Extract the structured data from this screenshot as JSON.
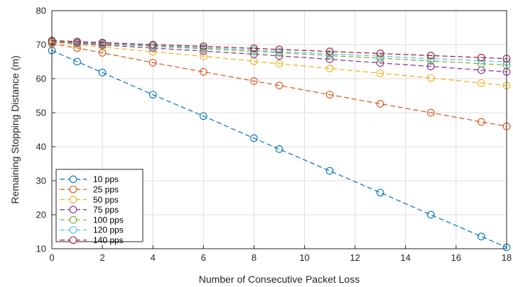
{
  "chart_data": {
    "type": "line",
    "title": "",
    "xlabel": "Number of Consecutive Packet Loss",
    "ylabel": "Remaining Stopping Distance (m)",
    "xlim": [
      0,
      18
    ],
    "ylim": [
      10,
      80
    ],
    "xticks": [
      0,
      2,
      4,
      6,
      8,
      10,
      12,
      14,
      16,
      18
    ],
    "yticks": [
      10,
      20,
      30,
      40,
      50,
      60,
      70,
      80
    ],
    "grid": true,
    "line_style": "dashed",
    "marker": "circle",
    "legend_position": "bottom-left",
    "x": [
      0,
      1,
      2,
      4,
      6,
      8,
      9,
      11,
      13,
      15,
      17,
      18
    ],
    "series": [
      {
        "name": "10 pps",
        "color": "#0072BD",
        "values": [
          68.3,
          65.0,
          61.8,
          55.3,
          49.0,
          42.5,
          39.3,
          32.9,
          26.5,
          20.0,
          13.6,
          10.4
        ]
      },
      {
        "name": "25 pps",
        "color": "#D95319",
        "values": [
          70.3,
          69.0,
          67.6,
          64.7,
          62.0,
          59.3,
          58.0,
          55.3,
          52.6,
          50.0,
          47.3,
          46.0
        ]
      },
      {
        "name": "50 pps",
        "color": "#EDB120",
        "values": [
          70.7,
          70.0,
          69.3,
          67.9,
          66.6,
          65.1,
          64.4,
          63.0,
          61.6,
          60.2,
          58.7,
          58.0
        ]
      },
      {
        "name": "75 pps",
        "color": "#7E2F8E",
        "values": [
          70.9,
          70.4,
          69.9,
          69.0,
          68.1,
          67.2,
          66.7,
          65.7,
          64.6,
          63.6,
          62.5,
          62.0
        ]
      },
      {
        "name": "100 pps",
        "color": "#77AC30",
        "values": [
          71.0,
          70.6,
          70.2,
          69.5,
          68.8,
          68.0,
          67.6,
          66.8,
          66.0,
          65.2,
          64.4,
          64.0
        ]
      },
      {
        "name": "120 pps",
        "color": "#4DBEEE",
        "values": [
          71.1,
          70.7,
          70.4,
          69.7,
          69.1,
          68.4,
          68.0,
          67.3,
          66.6,
          65.9,
          65.3,
          64.9
        ]
      },
      {
        "name": "140 pps",
        "color": "#A2142F",
        "values": [
          71.2,
          70.9,
          70.6,
          70.0,
          69.5,
          68.9,
          68.6,
          68.0,
          67.4,
          66.8,
          66.2,
          65.9
        ]
      }
    ]
  }
}
